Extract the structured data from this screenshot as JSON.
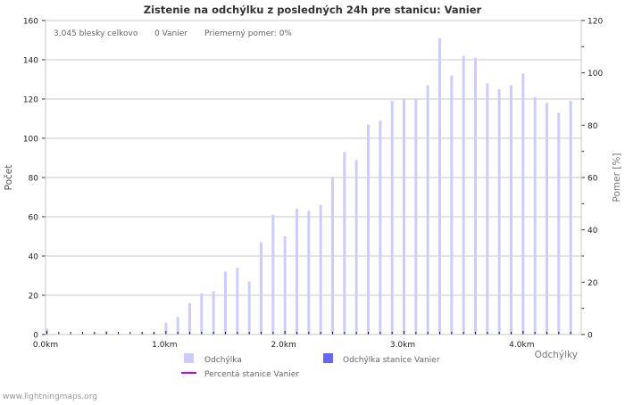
{
  "chart_data": {
    "type": "bar",
    "title": "Zistenie na odchýlku z posledných 24h pre stanicu: Vanier",
    "info": {
      "total": "3,045 blesky celkovo",
      "station": "0 Vanier",
      "ratio": "Priemerný pomer: 0%"
    },
    "xlabel": "Odchýlky",
    "ylabel": "Počet",
    "y2label": "Pomer [%]",
    "ylim": [
      0,
      160
    ],
    "y2lim": [
      0,
      120
    ],
    "yticks": [
      0,
      20,
      40,
      60,
      80,
      100,
      120,
      140,
      160
    ],
    "y2ticks": [
      0,
      20,
      40,
      60,
      80,
      100,
      120
    ],
    "xtick_labels": [
      "0.0km",
      "1.0km",
      "2.0km",
      "3.0km",
      "4.0km"
    ],
    "x_bin_km": 0.1,
    "series": [
      {
        "name": "Odchýlka",
        "color": "#ccccff",
        "values": [
          3,
          0,
          0,
          0,
          1,
          2,
          0,
          0,
          1,
          1,
          6,
          9,
          16,
          21,
          22,
          32,
          34,
          27,
          47,
          61,
          50,
          64,
          63,
          66,
          80,
          93,
          89,
          107,
          109,
          119,
          120,
          120,
          127,
          151,
          132,
          142,
          141,
          128,
          125,
          127,
          133,
          121,
          118,
          113,
          119
        ]
      },
      {
        "name": "Odchýlka stanice Vanier",
        "color": "#6666ff",
        "values": [
          0,
          0,
          0,
          0,
          0,
          0,
          0,
          0,
          0,
          0,
          0,
          0,
          0,
          0,
          0,
          0,
          0,
          0,
          0,
          0,
          0,
          0,
          0,
          0,
          0,
          0,
          0,
          0,
          0,
          0,
          0,
          0,
          0,
          0,
          0,
          0,
          0,
          0,
          0,
          0,
          0,
          0,
          0,
          0,
          0
        ]
      },
      {
        "name": "Percentá stanice Vanier",
        "color": "#cc00ff",
        "type": "line",
        "values": []
      }
    ],
    "grid": true
  },
  "footer": "www.lightningmaps.org"
}
